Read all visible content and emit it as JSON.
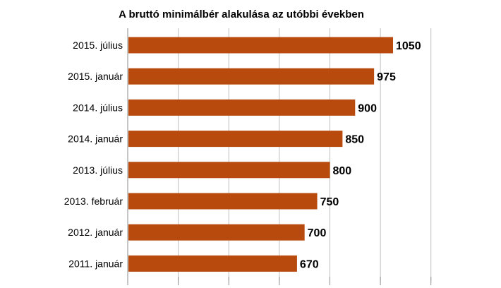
{
  "chart_data": {
    "type": "bar",
    "orientation": "horizontal",
    "title": "A bruttó minimálbér alakulása az utóbbi években",
    "categories": [
      "2015. július",
      "2015. január",
      "2014. július",
      "2014. január",
      "2013. július",
      "2013. február",
      "2012. január",
      "2011. január"
    ],
    "values": [
      1050,
      975,
      900,
      850,
      800,
      750,
      700,
      670
    ],
    "data_labels": [
      "1050",
      "975",
      "900",
      "850",
      "800",
      "750",
      "700",
      "670"
    ],
    "xlim": [
      0,
      1200
    ],
    "grid": true,
    "legend": "none",
    "bar_color": "#B94A0E",
    "grid_color": "#BFBFBF"
  }
}
